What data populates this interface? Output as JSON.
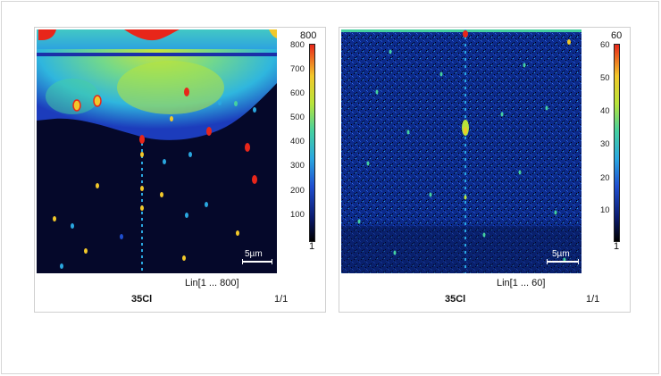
{
  "panels": [
    {
      "element": "35Cl",
      "range_label": "Lin[1 ... 800]",
      "frame": "1/1",
      "scale_label": "5µm",
      "colorbar": {
        "max_label": "800",
        "min_label": "1",
        "ticks": [
          "800",
          "700",
          "600",
          "500",
          "400",
          "300",
          "200",
          "100"
        ]
      }
    },
    {
      "element": "35Cl",
      "range_label": "Lin[1 ... 60]",
      "frame": "1/1",
      "scale_label": "5µm",
      "colorbar": {
        "max_label": "60",
        "min_label": "1",
        "ticks": [
          "60",
          "50",
          "40",
          "30",
          "20",
          "10"
        ]
      }
    }
  ],
  "colormap": [
    "#000000",
    "#0a1a6e",
    "#1f4fd0",
    "#2aa7e0",
    "#45d0a0",
    "#b8e43a",
    "#f2c82a",
    "#e8261a"
  ]
}
